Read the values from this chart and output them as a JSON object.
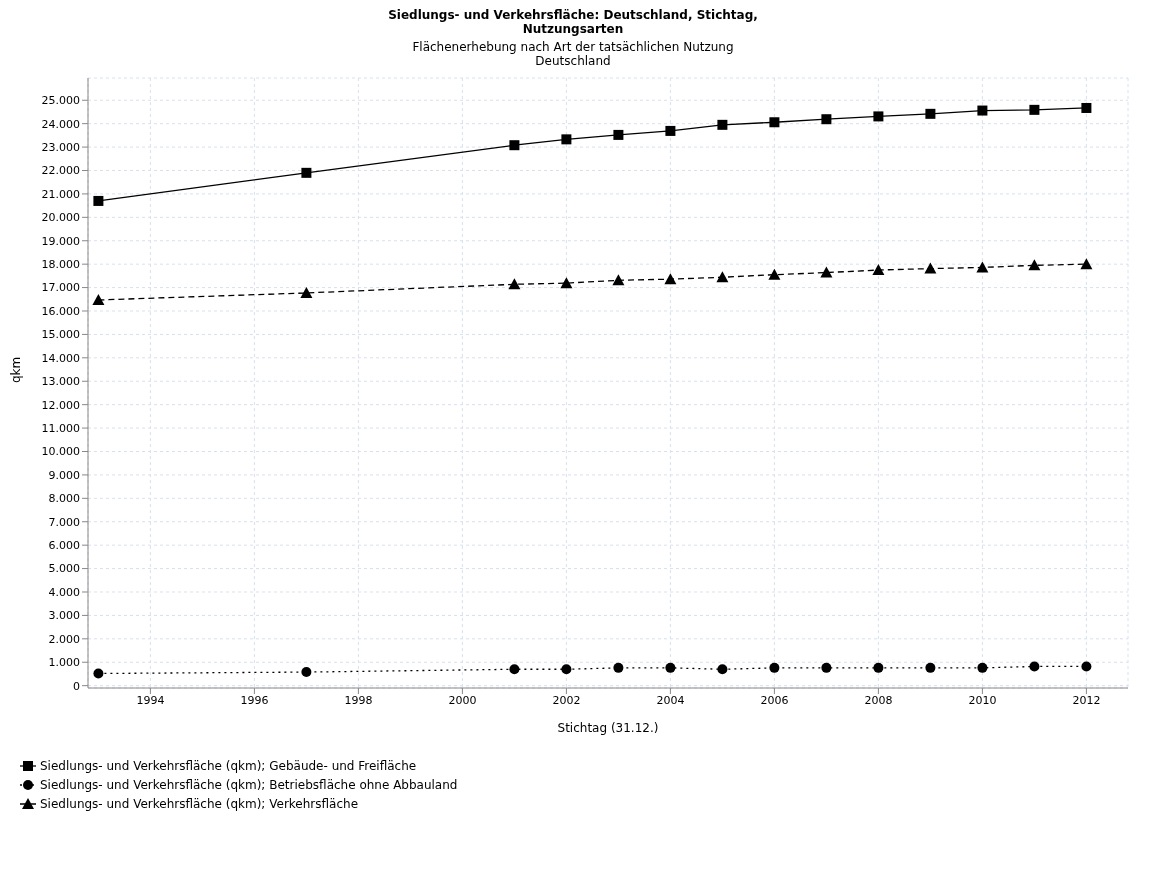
{
  "chart_data": {
    "type": "line",
    "title": "Siedlungs- und Verkehrsfläche: Deutschland, Stichtag,\nNutzungsarten",
    "subtitle": "Flächenerhebung nach Art der tatsächlichen Nutzung\nDeutschland",
    "xlabel": "Stichtag (31.12.)",
    "ylabel": "qkm",
    "x": [
      1993,
      1997,
      2001,
      2002,
      2003,
      2004,
      2005,
      2006,
      2007,
      2008,
      2009,
      2010,
      2011,
      2012
    ],
    "series": [
      {
        "name": "Siedlungs- und Verkehrsfläche (qkm); Gebäude- und Freifläche",
        "color": "#000000",
        "marker": "square",
        "line_style": "solid",
        "values": [
          20700,
          21900,
          23080,
          23330,
          23520,
          23690,
          23950,
          24060,
          24190,
          24310,
          24420,
          24560,
          24590,
          24670
        ]
      },
      {
        "name": "Siedlungs- und Verkehrsfläche (qkm); Betriebsfläche ohne Abbauland",
        "color": "#000000",
        "marker": "circle",
        "line_style": "dotted",
        "values": [
          520,
          580,
          700,
          700,
          760,
          760,
          700,
          760,
          760,
          760,
          760,
          760,
          820,
          820
        ]
      },
      {
        "name": "Siedlungs- und Verkehrsfläche (qkm); Verkehrsfläche",
        "color": "#000000",
        "marker": "triangle",
        "line_style": "dashed",
        "values": [
          16470,
          16770,
          17140,
          17190,
          17310,
          17360,
          17440,
          17550,
          17640,
          17750,
          17810,
          17860,
          17950,
          18000
        ]
      }
    ],
    "xlim": [
      1992.8,
      2012.8
    ],
    "xticks": [
      1994,
      1996,
      1998,
      2000,
      2002,
      2004,
      2006,
      2008,
      2010,
      2012
    ],
    "ylim": [
      -100,
      25950
    ],
    "yticks": [
      {
        "value": 0,
        "label": "0"
      },
      {
        "value": 1000,
        "label": "1.000"
      },
      {
        "value": 2000,
        "label": "2.000"
      },
      {
        "value": 3000,
        "label": "3.000"
      },
      {
        "value": 4000,
        "label": "4.000"
      },
      {
        "value": 5000,
        "label": "5.000"
      },
      {
        "value": 6000,
        "label": "6.000"
      },
      {
        "value": 7000,
        "label": "7.000"
      },
      {
        "value": 8000,
        "label": "8.000"
      },
      {
        "value": 9000,
        "label": "9.000"
      },
      {
        "value": 10000,
        "label": "10.000"
      },
      {
        "value": 11000,
        "label": "11.000"
      },
      {
        "value": 12000,
        "label": "12.000"
      },
      {
        "value": 13000,
        "label": "13.000"
      },
      {
        "value": 14000,
        "label": "14.000"
      },
      {
        "value": 15000,
        "label": "15.000"
      },
      {
        "value": 16000,
        "label": "16.000"
      },
      {
        "value": 17000,
        "label": "17.000"
      },
      {
        "value": 18000,
        "label": "18.000"
      },
      {
        "value": 19000,
        "label": "19.000"
      },
      {
        "value": 20000,
        "label": "20.000"
      },
      {
        "value": 21000,
        "label": "21.000"
      },
      {
        "value": 22000,
        "label": "22.000"
      },
      {
        "value": 23000,
        "label": "23.000"
      },
      {
        "value": 24000,
        "label": "24.000"
      },
      {
        "value": 25000,
        "label": "25.000"
      }
    ],
    "grid": true,
    "legend": "bottom"
  }
}
